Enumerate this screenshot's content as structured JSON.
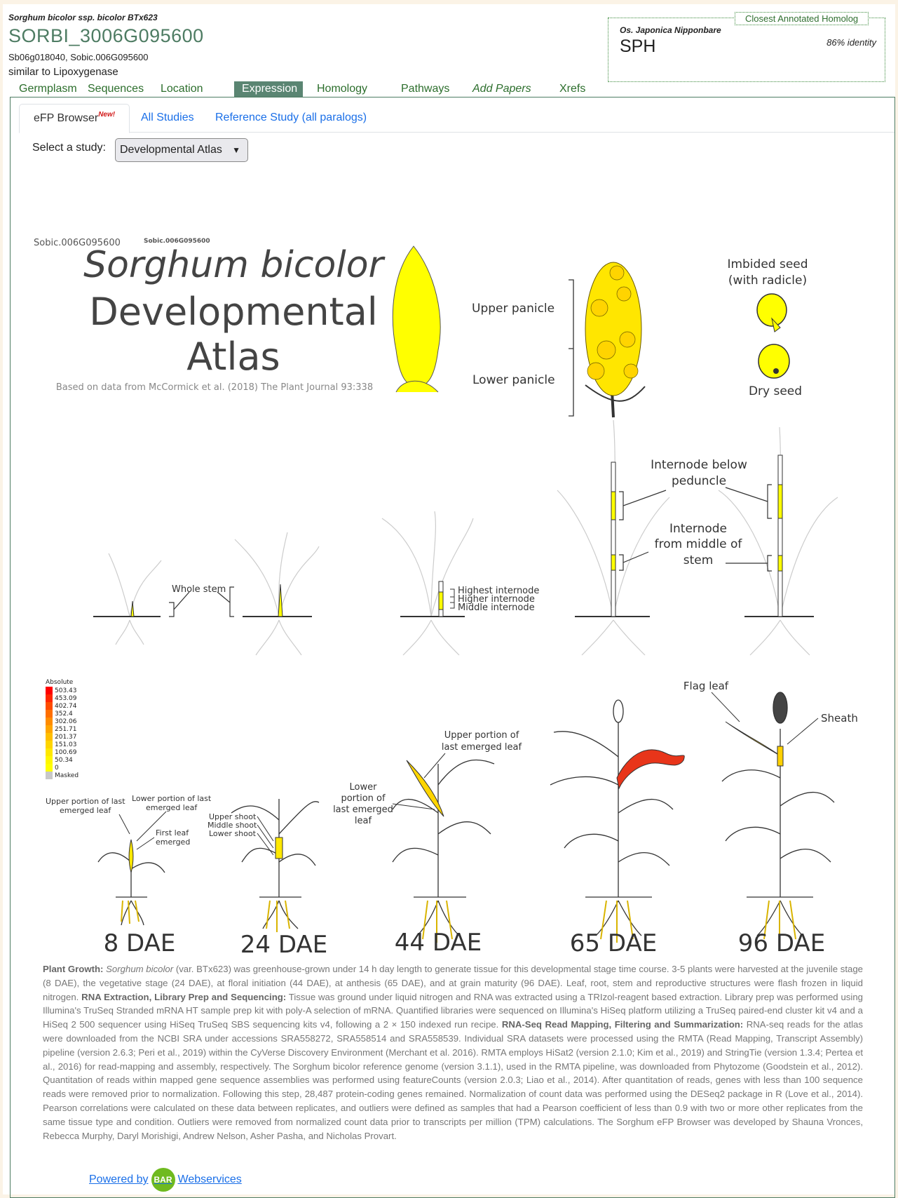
{
  "header": {
    "species": "Sorghum bicolor ssp. bicolor BTx623",
    "gene_id": "SORBI_3006G095600",
    "aliases": "Sb06g018040, Sobic.006G095600",
    "description": "similar to Lipoxygenase"
  },
  "homolog": {
    "tab_label": "Closest Annotated Homolog",
    "species": "Os. Japonica Nipponbare",
    "name": "SPH",
    "identity": "86% identity"
  },
  "nav": {
    "items": [
      "Germplasm",
      "Sequences",
      "Location",
      "Expression",
      "Homology",
      "Pathways",
      "Add Papers",
      "Xrefs"
    ],
    "active": "Expression"
  },
  "tabs": {
    "efp": "eFP Browser",
    "efp_badge": "New!",
    "all_studies": "All Studies",
    "reference": "Reference Study (all paralogs)"
  },
  "study_select": {
    "label": "Select a study:",
    "value": "Developmental Atlas"
  },
  "atlas": {
    "gene_tag_1": "Sobic.006G095600",
    "gene_tag_2": "Sobic.006G095600",
    "title_line1": "Sorghum bicolor",
    "title_line2": "Developmental",
    "title_line3": "Atlas",
    "citation": "Based on data from McCormick et al. (2018) The Plant Journal 93:338",
    "labels": {
      "upper_panicle": "Upper panicle",
      "lower_panicle": "Lower panicle",
      "imbibed_1": "Imbided seed",
      "imbibed_2": "(with radicle)",
      "dry_seed": "Dry seed",
      "whole_stem": "Whole stem",
      "highest_internode": "Highest internode",
      "higher_internode": "Higher internode",
      "middle_internode": "Middle internode",
      "internode_below_1": "Internode below",
      "internode_below_2": "peduncle",
      "internode_mid_1": "Internode",
      "internode_mid_2": "from middle of",
      "internode_mid_3": "stem",
      "flag_leaf": "Flag leaf",
      "sheath": "Sheath",
      "upper_last_1": "Upper portion of",
      "upper_last_2": "last emerged leaf",
      "lower_last_1": "Lower",
      "lower_last_2": "portion of",
      "lower_last_3": "last emerged",
      "lower_last_4": "leaf",
      "up8_1": "Upper portion of last",
      "up8_2": "emerged leaf",
      "low8_1": "Lower portion of last",
      "low8_2": "emerged leaf",
      "first_leaf_1": "First leaf",
      "first_leaf_2": "emerged",
      "upper_shoot": "Upper shoot",
      "middle_shoot": "Middle shoot",
      "lower_shoot": "Lower shoot"
    },
    "stages": [
      "8 DAE",
      "24 DAE",
      "44 DAE",
      "65 DAE",
      "96 DAE"
    ]
  },
  "legend": {
    "title": "Absolute",
    "values": [
      "503.43",
      "453.09",
      "402.74",
      "352.4",
      "302.06",
      "251.71",
      "201.37",
      "151.03",
      "100.69",
      "50.34",
      "0",
      "Masked"
    ],
    "colors": [
      "#ff0000",
      "#ff2600",
      "#ff4c00",
      "#ff6f00",
      "#ff8c00",
      "#ffa500",
      "#ffbf00",
      "#ffd500",
      "#ffe800",
      "#fff700",
      "#ffff00",
      "#c8c8c8"
    ]
  },
  "methods": {
    "growth_head": "Plant Growth:",
    "growth_species": "Sorghum bicolor",
    "growth_text": " (var. BTx623) was greenhouse-grown under 14 h day length to generate tissue for this developmental stage time course. 3-5 plants were harvested at the juvenile stage (8 DAE), the vegetative stage (24 DAE), at floral initiation (44 DAE), at anthesis (65 DAE), and at grain maturity (96 DAE). Leaf, root, stem and reproductive structures were flash frozen in liquid nitrogen. ",
    "rna_head": "RNA Extraction, Library Prep and Sequencing:",
    "rna_text": " Tissue was ground under liquid nitrogen and RNA was extracted using a TRIzol-reagent based extraction. Library prep was performed using Illumina's TruSeq Stranded mRNA HT sample prep kit with poly-A selection of mRNA. Quantified libraries were sequenced on Illumina's HiSeq platform utilizing a TruSeq paired-end cluster kit v4 and a HiSeq 2 500 sequencer using HiSeq TruSeq SBS sequencing kits v4, following a 2 × 150 indexed run recipe. ",
    "map_head": "RNA-Seq Read Mapping, Filtering and Summarization:",
    "map_text": " RNA-seq reads for the atlas were downloaded from the NCBI SRA under accessions SRA558272, SRA558514 and SRA558539. Individual SRA datasets were processed using the RMTA (Read Mapping, Transcript Assembly) pipeline (version 2.6.3; Peri et al., 2019) within the CyVerse Discovery Environment (Merchant et al. 2016). RMTA employs HiSat2 (version 2.1.0; Kim et al., 2019) and StringTie (version 1.3.4; Pertea et al., 2016) for read-mapping and assembly, respectively. The Sorghum bicolor reference genome (version 3.1.1), used in the RMTA pipeline, was downloaded from Phytozome (Goodstein et al., 2012).  Quantitation of reads within mapped gene sequence assemblies was performed using featureCounts (version 2.0.3; Liao et al., 2014). After quantitation of reads, genes with less than 100 sequence reads were removed prior to normalization.  Following this step, 28,487 protein-coding genes remained. Normalization of count data was performed using the DESeq2 package in R (Love et al., 2014). Pearson correlations were calculated on these data between replicates, and outliers were defined as samples that had a Pearson coefficient of less than 0.9 with two or more other replicates from the same tissue type and condition. Outliers were removed from normalized count data prior to transcripts per million (TPM) calculations. The Sorghum eFP Browser was developed by Shauna Vronces, Rebecca Murphy, Daryl Morishigi, Andrew Nelson, Asher Pasha, and Nicholas Provart."
  },
  "footer": {
    "powered_by": "Powered by",
    "logo": "BAR",
    "webservices": "Webservices"
  }
}
